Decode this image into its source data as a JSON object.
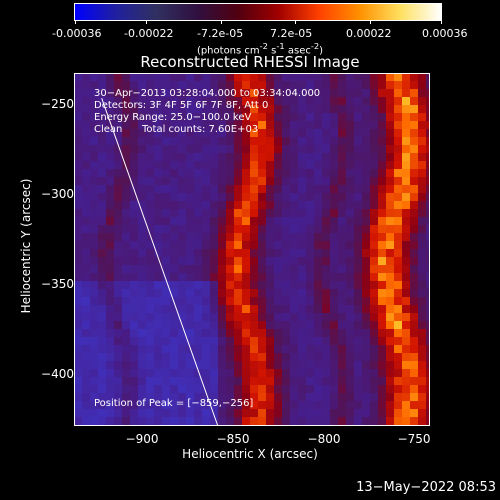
{
  "colorbar": {
    "colors": [
      "#0000ff",
      "#2020a0",
      "#303060",
      "#301040",
      "#500010",
      "#a00000",
      "#ff4000",
      "#ff9000",
      "#ffe060",
      "#ffffff"
    ],
    "tick_labels": [
      "-0.00036",
      "-0.00022",
      "-7.2e-05",
      "7.2e-05",
      "0.00022",
      "0.00036"
    ],
    "tick_values": [
      -0.00036,
      -0.00022,
      -7.2e-05,
      7.2e-05,
      0.00022,
      0.00036
    ],
    "range": [
      -0.00036,
      0.00036
    ],
    "unit_main": "(photons cm",
    "unit_sup1": "-2",
    "unit_mid": " s",
    "unit_sup2": "-1",
    "unit_end": " asec",
    "unit_sup3": "-2",
    "unit_close": ")"
  },
  "plot": {
    "title": "Reconstructed RHESSI Image",
    "xlabel": "Heliocentric X (arcsec)",
    "ylabel": "Heliocentric Y (arcsec)",
    "x_range": [
      -935,
      -742
    ],
    "y_range": [
      -432,
      -236
    ],
    "x_ticks": [
      -900,
      -850,
      -800,
      -750
    ],
    "x_tick_labels": [
      "−900",
      "−850",
      "−800",
      "−750"
    ],
    "y_ticks": [
      -250,
      -300,
      -350,
      -400
    ],
    "y_tick_labels": [
      "−250",
      "−300",
      "−350",
      "−400"
    ],
    "limb_line": {
      "x_start": -920,
      "y_start": -250,
      "x_end": -857,
      "y_end": -432
    }
  },
  "overlay": {
    "time_range": "30−Apr−2013 03:28:04.000 to 03:34:04.000",
    "detectors": "Detectors: 3F 4F 5F 6F 7F 8F, Att 0",
    "energy": "Energy Range: 25.0−100.0 keV",
    "clean_label": "Clean",
    "total_counts": "Total counts: 7.60E+03",
    "peak": "Position of Peak = [−859,−256]"
  },
  "footer": {
    "date": "13−May−2022 08:53"
  }
}
